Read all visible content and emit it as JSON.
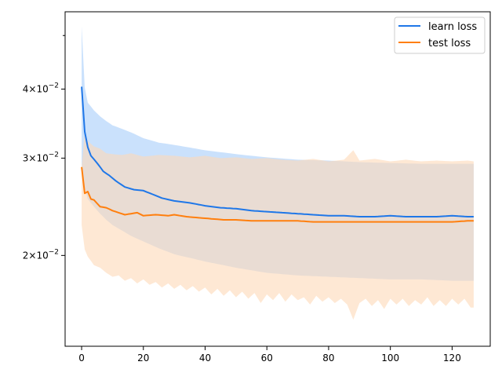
{
  "chart_data": {
    "type": "line",
    "title": "",
    "xlabel": "",
    "ylabel": "",
    "xlim": [
      -5.35,
      132.35
    ],
    "ylim": [
      0.0137,
      0.0552
    ],
    "yscale": "log",
    "grid": false,
    "legend_position": "top-right",
    "x_ticks": [
      0,
      20,
      40,
      60,
      80,
      100,
      120
    ],
    "x_tick_labels": [
      "0",
      "20",
      "40",
      "60",
      "80",
      "100",
      "120"
    ],
    "y_major_ticks": [
      0.02,
      0.03,
      0.04
    ],
    "y_tick_labels": [
      {
        "base": "2",
        "exp": "−2"
      },
      {
        "base": "3",
        "exp": "−2"
      },
      {
        "base": "4",
        "exp": "−2"
      }
    ],
    "y_minor_ticks": [
      0.05
    ],
    "series": [
      {
        "name": "learn loss",
        "color": "#1f77e8",
        "band_color": "#b3d4fb",
        "points": [
          [
            0,
            0.0404
          ],
          [
            1,
            0.0335
          ],
          [
            2,
            0.0314
          ],
          [
            3,
            0.0303
          ],
          [
            5,
            0.0294
          ],
          [
            7,
            0.0284
          ],
          [
            9,
            0.0279
          ],
          [
            11,
            0.0273
          ],
          [
            14,
            0.0266
          ],
          [
            17,
            0.0263
          ],
          [
            20,
            0.0262
          ],
          [
            23,
            0.0258
          ],
          [
            26,
            0.0254
          ],
          [
            30,
            0.0251
          ],
          [
            35,
            0.0249
          ],
          [
            40,
            0.0246
          ],
          [
            45,
            0.0244
          ],
          [
            50,
            0.0243
          ],
          [
            55,
            0.0241
          ],
          [
            60,
            0.024
          ],
          [
            65,
            0.0239
          ],
          [
            70,
            0.0238
          ],
          [
            75,
            0.0237
          ],
          [
            80,
            0.0236
          ],
          [
            85,
            0.0236
          ],
          [
            90,
            0.0235
          ],
          [
            95,
            0.0235
          ],
          [
            100,
            0.0236
          ],
          [
            105,
            0.0235
          ],
          [
            110,
            0.0235
          ],
          [
            115,
            0.0235
          ],
          [
            120,
            0.0236
          ],
          [
            125,
            0.0235
          ],
          [
            127,
            0.0235
          ]
        ],
        "upper": [
          [
            0,
            0.052
          ],
          [
            1,
            0.0403
          ],
          [
            2,
            0.0378
          ],
          [
            4,
            0.0366
          ],
          [
            6,
            0.0357
          ],
          [
            8,
            0.035
          ],
          [
            10,
            0.0344
          ],
          [
            13,
            0.0339
          ],
          [
            16,
            0.0334
          ],
          [
            20,
            0.0326
          ],
          [
            25,
            0.032
          ],
          [
            30,
            0.0317
          ],
          [
            40,
            0.031
          ],
          [
            50,
            0.0305
          ],
          [
            60,
            0.0301
          ],
          [
            70,
            0.0298
          ],
          [
            80,
            0.0297
          ],
          [
            90,
            0.0295
          ],
          [
            100,
            0.0294
          ],
          [
            110,
            0.0293
          ],
          [
            120,
            0.0293
          ],
          [
            127,
            0.0293
          ]
        ],
        "lower": [
          [
            0,
            0.0292
          ],
          [
            1,
            0.0265
          ],
          [
            2,
            0.0253
          ],
          [
            4,
            0.0245
          ],
          [
            6,
            0.0238
          ],
          [
            8,
            0.0232
          ],
          [
            10,
            0.0227
          ],
          [
            13,
            0.0222
          ],
          [
            16,
            0.0217
          ],
          [
            20,
            0.0212
          ],
          [
            25,
            0.0206
          ],
          [
            30,
            0.0201
          ],
          [
            40,
            0.0195
          ],
          [
            50,
            0.019
          ],
          [
            60,
            0.0186
          ],
          [
            70,
            0.0184
          ],
          [
            80,
            0.0183
          ],
          [
            90,
            0.0182
          ],
          [
            100,
            0.0181
          ],
          [
            110,
            0.0181
          ],
          [
            120,
            0.018
          ],
          [
            127,
            0.018
          ]
        ]
      },
      {
        "name": "test loss",
        "color": "#ff7f0e",
        "band_color": "#fdd9b8",
        "points": [
          [
            0,
            0.0289
          ],
          [
            1,
            0.0259
          ],
          [
            2,
            0.0261
          ],
          [
            3,
            0.0253
          ],
          [
            4,
            0.0252
          ],
          [
            6,
            0.0245
          ],
          [
            8,
            0.0244
          ],
          [
            10,
            0.0241
          ],
          [
            12,
            0.0239
          ],
          [
            14,
            0.0237
          ],
          [
            16,
            0.0238
          ],
          [
            18,
            0.0239
          ],
          [
            20,
            0.0236
          ],
          [
            24,
            0.0237
          ],
          [
            28,
            0.0236
          ],
          [
            30,
            0.0237
          ],
          [
            34,
            0.0235
          ],
          [
            38,
            0.0234
          ],
          [
            42,
            0.0233
          ],
          [
            46,
            0.0232
          ],
          [
            50,
            0.0232
          ],
          [
            55,
            0.0231
          ],
          [
            60,
            0.0231
          ],
          [
            65,
            0.0231
          ],
          [
            70,
            0.0231
          ],
          [
            75,
            0.023
          ],
          [
            80,
            0.023
          ],
          [
            85,
            0.023
          ],
          [
            90,
            0.023
          ],
          [
            95,
            0.023
          ],
          [
            100,
            0.023
          ],
          [
            105,
            0.023
          ],
          [
            110,
            0.023
          ],
          [
            115,
            0.023
          ],
          [
            120,
            0.023
          ],
          [
            125,
            0.0231
          ],
          [
            127,
            0.0231
          ]
        ],
        "upper": [
          [
            0,
            0.0289
          ],
          [
            1,
            0.0333
          ],
          [
            2,
            0.0322
          ],
          [
            4,
            0.0315
          ],
          [
            6,
            0.0312
          ],
          [
            8,
            0.0306
          ],
          [
            10,
            0.0305
          ],
          [
            13,
            0.0304
          ],
          [
            16,
            0.0306
          ],
          [
            20,
            0.0302
          ],
          [
            25,
            0.0304
          ],
          [
            30,
            0.0303
          ],
          [
            35,
            0.0301
          ],
          [
            40,
            0.0303
          ],
          [
            45,
            0.03
          ],
          [
            50,
            0.0301
          ],
          [
            55,
            0.0299
          ],
          [
            60,
            0.03
          ],
          [
            65,
            0.0298
          ],
          [
            70,
            0.0297
          ],
          [
            75,
            0.0299
          ],
          [
            80,
            0.0296
          ],
          [
            85,
            0.0298
          ],
          [
            88,
            0.031
          ],
          [
            90,
            0.0297
          ],
          [
            95,
            0.0299
          ],
          [
            100,
            0.0296
          ],
          [
            105,
            0.0298
          ],
          [
            110,
            0.0296
          ],
          [
            115,
            0.0297
          ],
          [
            120,
            0.0296
          ],
          [
            125,
            0.0297
          ],
          [
            127,
            0.0296
          ]
        ],
        "lower": [
          [
            0,
            0.0227
          ],
          [
            1,
            0.0205
          ],
          [
            2,
            0.0199
          ],
          [
            4,
            0.0192
          ],
          [
            6,
            0.019
          ],
          [
            8,
            0.0186
          ],
          [
            10,
            0.0183
          ],
          [
            12,
            0.0184
          ],
          [
            14,
            0.018
          ],
          [
            16,
            0.0182
          ],
          [
            18,
            0.0178
          ],
          [
            20,
            0.0181
          ],
          [
            22,
            0.0177
          ],
          [
            24,
            0.0179
          ],
          [
            26,
            0.0175
          ],
          [
            28,
            0.0178
          ],
          [
            30,
            0.0174
          ],
          [
            32,
            0.0177
          ],
          [
            34,
            0.0173
          ],
          [
            36,
            0.0176
          ],
          [
            38,
            0.0172
          ],
          [
            40,
            0.0175
          ],
          [
            42,
            0.017
          ],
          [
            44,
            0.0174
          ],
          [
            46,
            0.0169
          ],
          [
            48,
            0.0173
          ],
          [
            50,
            0.0168
          ],
          [
            52,
            0.0172
          ],
          [
            54,
            0.0167
          ],
          [
            56,
            0.0171
          ],
          [
            58,
            0.0164
          ],
          [
            60,
            0.017
          ],
          [
            62,
            0.0166
          ],
          [
            64,
            0.0171
          ],
          [
            66,
            0.0165
          ],
          [
            68,
            0.017
          ],
          [
            70,
            0.0166
          ],
          [
            72,
            0.0168
          ],
          [
            74,
            0.0163
          ],
          [
            76,
            0.0169
          ],
          [
            78,
            0.0165
          ],
          [
            80,
            0.0168
          ],
          [
            82,
            0.0164
          ],
          [
            84,
            0.0167
          ],
          [
            86,
            0.0163
          ],
          [
            88,
            0.0153
          ],
          [
            90,
            0.0164
          ],
          [
            92,
            0.0167
          ],
          [
            94,
            0.0162
          ],
          [
            96,
            0.0166
          ],
          [
            98,
            0.016
          ],
          [
            100,
            0.0167
          ],
          [
            102,
            0.0163
          ],
          [
            104,
            0.0167
          ],
          [
            106,
            0.0162
          ],
          [
            108,
            0.0166
          ],
          [
            110,
            0.0163
          ],
          [
            112,
            0.0168
          ],
          [
            114,
            0.0162
          ],
          [
            116,
            0.0166
          ],
          [
            118,
            0.0162
          ],
          [
            120,
            0.0167
          ],
          [
            122,
            0.0163
          ],
          [
            124,
            0.0167
          ],
          [
            126,
            0.0161
          ],
          [
            127,
            0.0161
          ]
        ]
      }
    ]
  }
}
